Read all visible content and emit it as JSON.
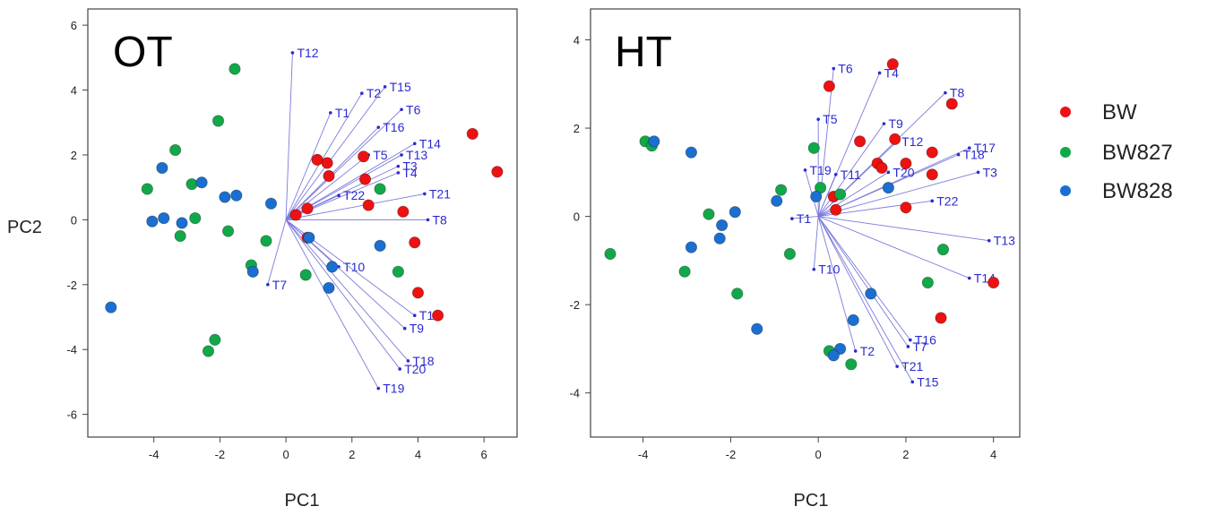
{
  "legend": [
    {
      "label": "BW",
      "color": "#ee1111"
    },
    {
      "label": "BW827",
      "color": "#11a84a"
    },
    {
      "label": "BW828",
      "color": "#1a6fd0"
    }
  ],
  "chart_data": [
    {
      "type": "scatter",
      "title": "OT",
      "xlabel": "PC1",
      "ylabel": "PC2",
      "xlim": [
        -6.0,
        7.0
      ],
      "ylim": [
        -6.7,
        6.5
      ],
      "xticks": [
        -4,
        -2,
        0,
        2,
        4,
        6
      ],
      "yticks": [
        -6,
        -4,
        -2,
        0,
        2,
        4,
        6
      ],
      "vector_color": "#2a2ad0",
      "loading_vectors": [
        {
          "label": "T12",
          "x": 0.2,
          "y": 5.15
        },
        {
          "label": "T2",
          "x": 2.3,
          "y": 3.9
        },
        {
          "label": "T15",
          "x": 3.0,
          "y": 4.1
        },
        {
          "label": "T1",
          "x": 1.35,
          "y": 3.3
        },
        {
          "label": "T6",
          "x": 3.5,
          "y": 3.4
        },
        {
          "label": "T16",
          "x": 2.8,
          "y": 2.85
        },
        {
          "label": "T14",
          "x": 3.9,
          "y": 2.35
        },
        {
          "label": "T5",
          "x": 2.5,
          "y": 2.0
        },
        {
          "label": "T13",
          "x": 3.5,
          "y": 2.0
        },
        {
          "label": "T3",
          "x": 3.4,
          "y": 1.65
        },
        {
          "label": "T4",
          "x": 3.4,
          "y": 1.45
        },
        {
          "label": "T22",
          "x": 1.6,
          "y": 0.75
        },
        {
          "label": "T21",
          "x": 4.2,
          "y": 0.8
        },
        {
          "label": "T8",
          "x": 4.3,
          "y": 0.0
        },
        {
          "label": "T10",
          "x": 1.6,
          "y": -1.45
        },
        {
          "label": "T7",
          "x": -0.55,
          "y": -2.0
        },
        {
          "label": "T17",
          "x": 3.9,
          "y": -2.95
        },
        {
          "label": "T9",
          "x": 3.6,
          "y": -3.35
        },
        {
          "label": "T18",
          "x": 3.7,
          "y": -4.35
        },
        {
          "label": "T20",
          "x": 3.45,
          "y": -4.6
        },
        {
          "label": "T19",
          "x": 2.8,
          "y": -5.2
        }
      ],
      "series": [
        {
          "name": "BW",
          "color": "#ee1111",
          "points": [
            [
              5.65,
              2.65
            ],
            [
              6.4,
              1.48
            ],
            [
              0.95,
              1.85
            ],
            [
              1.25,
              1.75
            ],
            [
              1.3,
              1.35
            ],
            [
              2.35,
              1.95
            ],
            [
              2.4,
              1.25
            ],
            [
              2.5,
              0.45
            ],
            [
              3.55,
              0.25
            ],
            [
              0.65,
              0.35
            ],
            [
              0.3,
              0.15
            ],
            [
              0.65,
              -0.55
            ],
            [
              3.9,
              -0.7
            ],
            [
              4.0,
              -2.25
            ],
            [
              4.6,
              -2.95
            ]
          ]
        },
        {
          "name": "BW827",
          "color": "#11a84a",
          "points": [
            [
              -1.55,
              4.65
            ],
            [
              -2.05,
              3.05
            ],
            [
              -3.35,
              2.15
            ],
            [
              -4.2,
              0.95
            ],
            [
              -2.85,
              1.1
            ],
            [
              -2.75,
              0.05
            ],
            [
              -3.2,
              -0.5
            ],
            [
              -1.75,
              -0.35
            ],
            [
              -0.6,
              -0.65
            ],
            [
              -1.05,
              -1.4
            ],
            [
              0.6,
              -1.7
            ],
            [
              2.85,
              0.95
            ],
            [
              3.4,
              -1.6
            ],
            [
              -2.15,
              -3.7
            ],
            [
              -2.35,
              -4.05
            ]
          ]
        },
        {
          "name": "BW828",
          "color": "#1a6fd0",
          "points": [
            [
              -3.75,
              1.6
            ],
            [
              -2.55,
              1.15
            ],
            [
              -1.5,
              0.75
            ],
            [
              -1.85,
              0.7
            ],
            [
              -0.45,
              0.5
            ],
            [
              -4.05,
              -0.05
            ],
            [
              -3.7,
              0.05
            ],
            [
              -3.15,
              -0.1
            ],
            [
              0.7,
              -0.55
            ],
            [
              -1.0,
              -1.6
            ],
            [
              1.4,
              -1.45
            ],
            [
              1.3,
              -2.1
            ],
            [
              2.85,
              -0.8
            ],
            [
              -5.3,
              -2.7
            ]
          ]
        }
      ]
    },
    {
      "type": "scatter",
      "title": "HT",
      "xlabel": "PC1",
      "ylabel": "",
      "xlim": [
        -5.2,
        4.6
      ],
      "ylim": [
        -5.0,
        4.7
      ],
      "xticks": [
        -4,
        -2,
        0,
        2,
        4
      ],
      "yticks": [
        -4,
        -2,
        0,
        2,
        4
      ],
      "vector_color": "#2a2ad0",
      "loading_vectors": [
        {
          "label": "T6",
          "x": 0.35,
          "y": 3.35
        },
        {
          "label": "T4",
          "x": 1.4,
          "y": 3.25
        },
        {
          "label": "T8",
          "x": 2.9,
          "y": 2.8
        },
        {
          "label": "T5",
          "x": 0.0,
          "y": 2.2
        },
        {
          "label": "T9",
          "x": 1.5,
          "y": 2.1
        },
        {
          "label": "T12",
          "x": 1.8,
          "y": 1.7
        },
        {
          "label": "T17",
          "x": 3.45,
          "y": 1.55
        },
        {
          "label": "T18",
          "x": 3.2,
          "y": 1.4
        },
        {
          "label": "T19",
          "x": -0.3,
          "y": 1.05
        },
        {
          "label": "T11",
          "x": 0.4,
          "y": 0.95
        },
        {
          "label": "T20",
          "x": 1.6,
          "y": 1.0
        },
        {
          "label": "T3",
          "x": 3.65,
          "y": 1.0
        },
        {
          "label": "T22",
          "x": 2.6,
          "y": 0.35
        },
        {
          "label": "T1",
          "x": -0.6,
          "y": -0.05
        },
        {
          "label": "T13",
          "x": 3.9,
          "y": -0.55
        },
        {
          "label": "T10",
          "x": -0.1,
          "y": -1.2
        },
        {
          "label": "T14",
          "x": 3.45,
          "y": -1.4
        },
        {
          "label": "T16",
          "x": 2.1,
          "y": -2.8
        },
        {
          "label": "T7",
          "x": 2.05,
          "y": -2.95
        },
        {
          "label": "T2",
          "x": 0.85,
          "y": -3.05
        },
        {
          "label": "T21",
          "x": 1.8,
          "y": -3.4
        },
        {
          "label": "T15",
          "x": 2.15,
          "y": -3.75
        }
      ],
      "series": [
        {
          "name": "BW",
          "color": "#ee1111",
          "points": [
            [
              1.7,
              3.45
            ],
            [
              0.25,
              2.95
            ],
            [
              3.05,
              2.55
            ],
            [
              0.95,
              1.7
            ],
            [
              1.35,
              1.2
            ],
            [
              1.45,
              1.1
            ],
            [
              1.75,
              1.75
            ],
            [
              2.0,
              1.2
            ],
            [
              2.6,
              0.95
            ],
            [
              2.6,
              1.45
            ],
            [
              0.35,
              0.45
            ],
            [
              0.4,
              0.15
            ],
            [
              2.0,
              0.2
            ],
            [
              2.8,
              -2.3
            ],
            [
              4.0,
              -1.5
            ]
          ]
        },
        {
          "name": "BW827",
          "color": "#11a84a",
          "points": [
            [
              -3.95,
              1.7
            ],
            [
              -3.8,
              1.6
            ],
            [
              -0.1,
              1.55
            ],
            [
              0.05,
              0.65
            ],
            [
              0.5,
              0.5
            ],
            [
              -0.85,
              0.6
            ],
            [
              -2.5,
              0.05
            ],
            [
              -3.05,
              -1.25
            ],
            [
              -1.85,
              -1.75
            ],
            [
              -0.65,
              -0.85
            ],
            [
              -4.75,
              -0.85
            ],
            [
              2.85,
              -0.75
            ],
            [
              2.5,
              -1.5
            ],
            [
              0.25,
              -3.05
            ],
            [
              0.75,
              -3.35
            ]
          ]
        },
        {
          "name": "BW828",
          "color": "#1a6fd0",
          "points": [
            [
              -3.75,
              1.7
            ],
            [
              -2.9,
              1.45
            ],
            [
              -0.95,
              0.35
            ],
            [
              -0.05,
              0.45
            ],
            [
              1.6,
              0.65
            ],
            [
              -1.9,
              0.1
            ],
            [
              -2.2,
              -0.2
            ],
            [
              -2.25,
              -0.5
            ],
            [
              -2.9,
              -0.7
            ],
            [
              1.2,
              -1.75
            ],
            [
              0.8,
              -2.35
            ],
            [
              -1.4,
              -2.55
            ],
            [
              0.5,
              -3.0
            ],
            [
              0.35,
              -3.15
            ]
          ]
        }
      ]
    }
  ]
}
